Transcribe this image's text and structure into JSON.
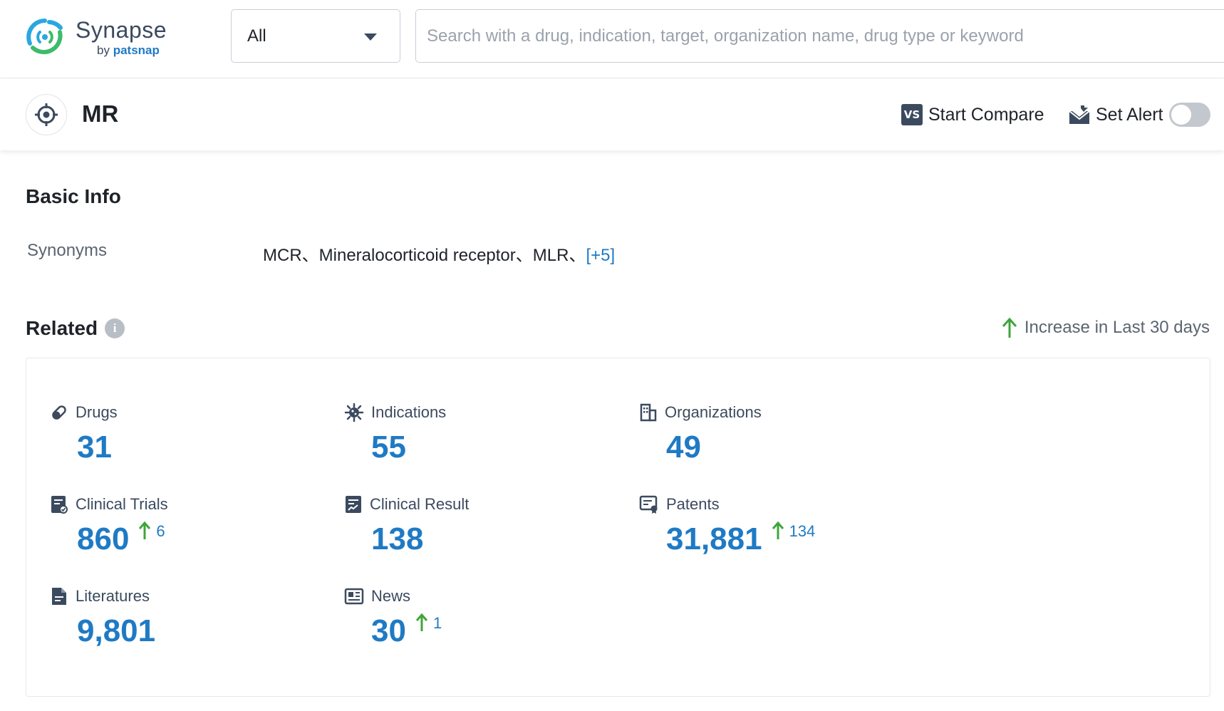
{
  "header": {
    "logo_name": "Synapse",
    "logo_by": "by",
    "logo_brand": "patsnap",
    "scope_value": "All",
    "search_placeholder": "Search with a drug, indication, target, organization name, drug type or keyword"
  },
  "target": {
    "title": "MR",
    "compare_label": "Start Compare",
    "compare_badge": "VS",
    "alert_label": "Set Alert",
    "alert_enabled": false
  },
  "basic_info": {
    "title": "Basic Info",
    "synonyms_label": "Synonyms",
    "synonyms_text": "MCR、Mineralocorticoid receptor、MLR、",
    "synonyms_more": "[+5]"
  },
  "related": {
    "title": "Related",
    "info_glyph": "i",
    "legend": "Increase in Last 30 days",
    "increase_color": "#3ea639",
    "value_color": "#1f7ac4",
    "stats": [
      {
        "label": "Drugs",
        "icon": "pill-icon",
        "value": "31",
        "increase": null
      },
      {
        "label": "Indications",
        "icon": "virus-icon",
        "value": "55",
        "increase": null
      },
      {
        "label": "Organizations",
        "icon": "building-icon",
        "value": "49",
        "increase": null
      },
      {
        "label": "Clinical Trials",
        "icon": "clinical-trial-icon",
        "value": "860",
        "increase": "6"
      },
      {
        "label": "Clinical Result",
        "icon": "clinical-result-icon",
        "value": "138",
        "increase": null
      },
      {
        "label": "Patents",
        "icon": "patent-icon",
        "value": "31,881",
        "increase": "134"
      },
      {
        "label": "Literatures",
        "icon": "document-icon",
        "value": "9,801",
        "increase": null
      },
      {
        "label": "News",
        "icon": "news-icon",
        "value": "30",
        "increase": "1"
      }
    ]
  }
}
